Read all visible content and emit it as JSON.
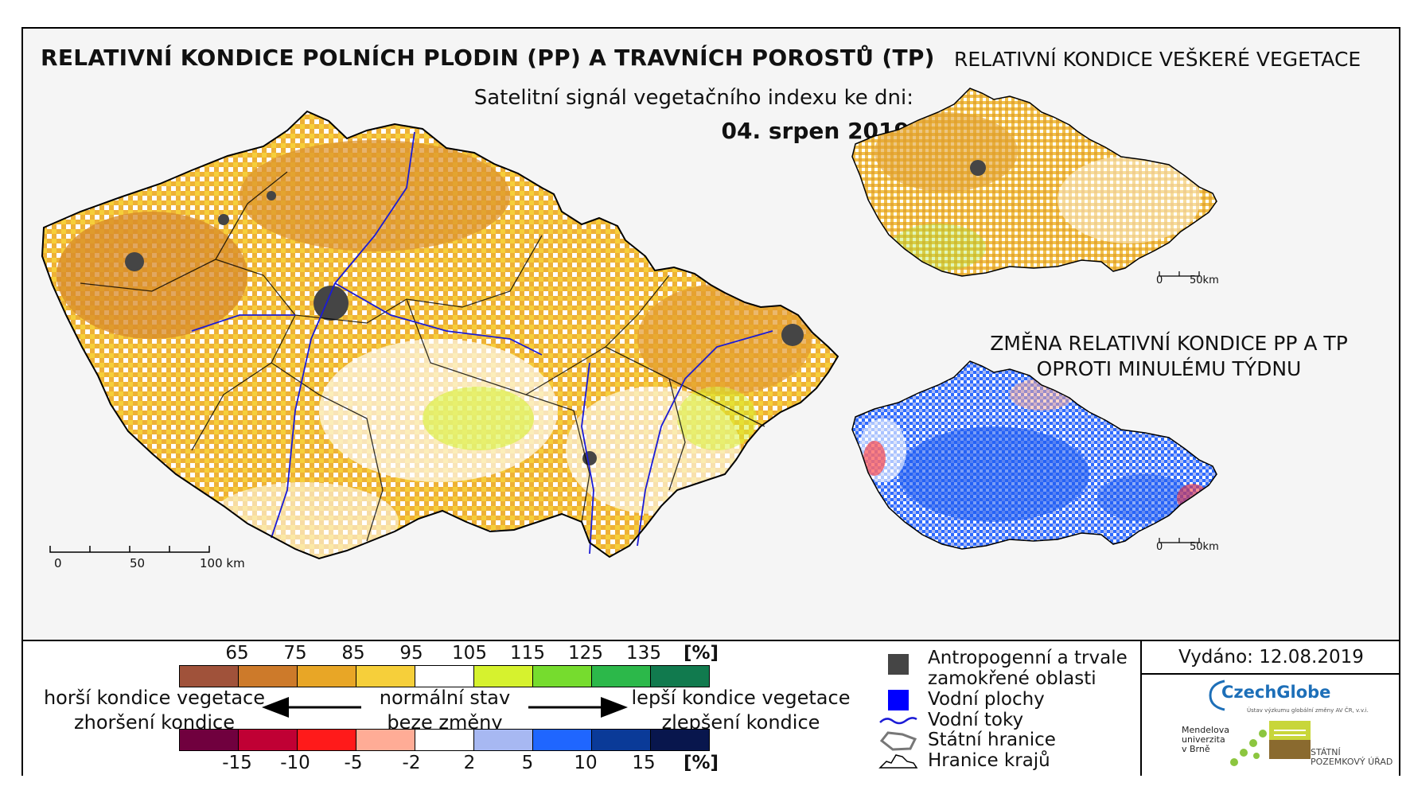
{
  "titles": {
    "main": "RELATIVNÍ KONDICE POLNÍCH PLODIN (PP) A TRAVNÍCH POROSTŮ (TP)",
    "signal": "Satelitní signál vegetačního indexu ke dni:",
    "date": "04. srpen 2019",
    "right_top": "RELATIVNÍ KONDICE VEŠKERÉ VEGETACE",
    "right_bottom_line1": "ZMĚNA RELATIVNÍ KONDICE PP A TP",
    "right_bottom_line2": "OPROTI MINULÉMU TÝDNU"
  },
  "scalebars": {
    "main": {
      "t0": "0",
      "t1": "50",
      "t2": "100 km"
    },
    "small_top": {
      "t0": "0",
      "t1": "50km"
    },
    "small_bottom": {
      "t0": "0",
      "t1": "50km"
    }
  },
  "legend_condition": {
    "unit": "[%]",
    "ticks": [
      "65",
      "75",
      "85",
      "95",
      "105",
      "115",
      "125",
      "135"
    ],
    "colors": [
      "#a0523a",
      "#cd7a2a",
      "#e8a626",
      "#f6cf3a",
      "#ffffff",
      "#d6f22e",
      "#76dc2e",
      "#2cb84a",
      "#117a4e"
    ]
  },
  "legend_change": {
    "unit": "[%]",
    "ticks": [
      "-15",
      "-10",
      "-5",
      "-2",
      "2",
      "5",
      "10",
      "15"
    ],
    "colors": [
      "#70003e",
      "#c00034",
      "#ff1a1a",
      "#ffac96",
      "#ffffff",
      "#a7b8f2",
      "#1f66ff",
      "#0a3a98",
      "#08164d"
    ]
  },
  "legend_labels": {
    "worse_1": "horší kondice vegetace",
    "worse_2": "zhoršení kondice",
    "normal_1": "normální stav",
    "normal_2": "beze změny",
    "better_1": "lepší kondice vegetace",
    "better_2": "zlepšení kondice"
  },
  "legend_items": {
    "anthropogenic_1": "Antropogenní a trvale",
    "anthropogenic_2": "zamokřené oblasti",
    "water_bodies": "Vodní plochy",
    "rivers": "Vodní toky",
    "state_border": "Státní hranice",
    "region_border": "Hranice krajů",
    "colors": {
      "anthropogenic": "#454545",
      "water": "#0000ff",
      "river": "#1b1bd6"
    }
  },
  "issued": "Vydáno: 12.08.2019",
  "logos": {
    "czechglobe": "CzechGlobe",
    "czechglobe_sub": "Ústav výzkumu globální změny AV ČR, v.v.i.",
    "mendel_1": "Mendelova",
    "mendel_2": "univerzita",
    "mendel_3": "v Brně",
    "spu_1": "STÁTNÍ",
    "spu_2": "POZEMKOVÝ ÚŘAD"
  }
}
